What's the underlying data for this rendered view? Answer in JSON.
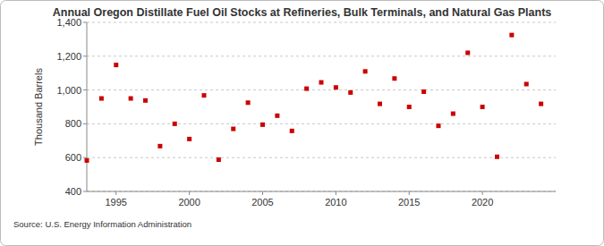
{
  "chart_data": {
    "type": "scatter",
    "title": "Annual Oregon Distillate Fuel Oil Stocks at Refineries, Bulk Terminals, and Natural Gas Plants",
    "y_label": "Thousand Barrels",
    "source": "Source: U.S. Energy Information Administration",
    "x": [
      1993,
      1994,
      1995,
      1996,
      1997,
      1998,
      1999,
      2000,
      2001,
      2002,
      2003,
      2004,
      2005,
      2006,
      2007,
      2008,
      2009,
      2010,
      2011,
      2012,
      2013,
      2014,
      2015,
      2016,
      2017,
      2018,
      2019,
      2020,
      2021,
      2022,
      2023,
      2024
    ],
    "values": [
      583,
      950,
      1148,
      950,
      938,
      668,
      800,
      710,
      968,
      588,
      770,
      925,
      795,
      848,
      758,
      1008,
      1045,
      1015,
      985,
      1110,
      918,
      1068,
      900,
      990,
      788,
      860,
      1220,
      900,
      605,
      1325,
      1035,
      918
    ],
    "color": "#cc0000",
    "marker": "square",
    "xlim": [
      1993,
      2025
    ],
    "xticks": [
      1995,
      2000,
      2005,
      2010,
      2015,
      2020
    ],
    "ylim": [
      400,
      1400
    ],
    "yticks": [
      400,
      600,
      800,
      {
        "value": 1000,
        "label": "1,000"
      },
      {
        "value": 1200,
        "label": "1,200"
      },
      {
        "value": 1400,
        "label": "1,400"
      }
    ],
    "grid": true
  }
}
